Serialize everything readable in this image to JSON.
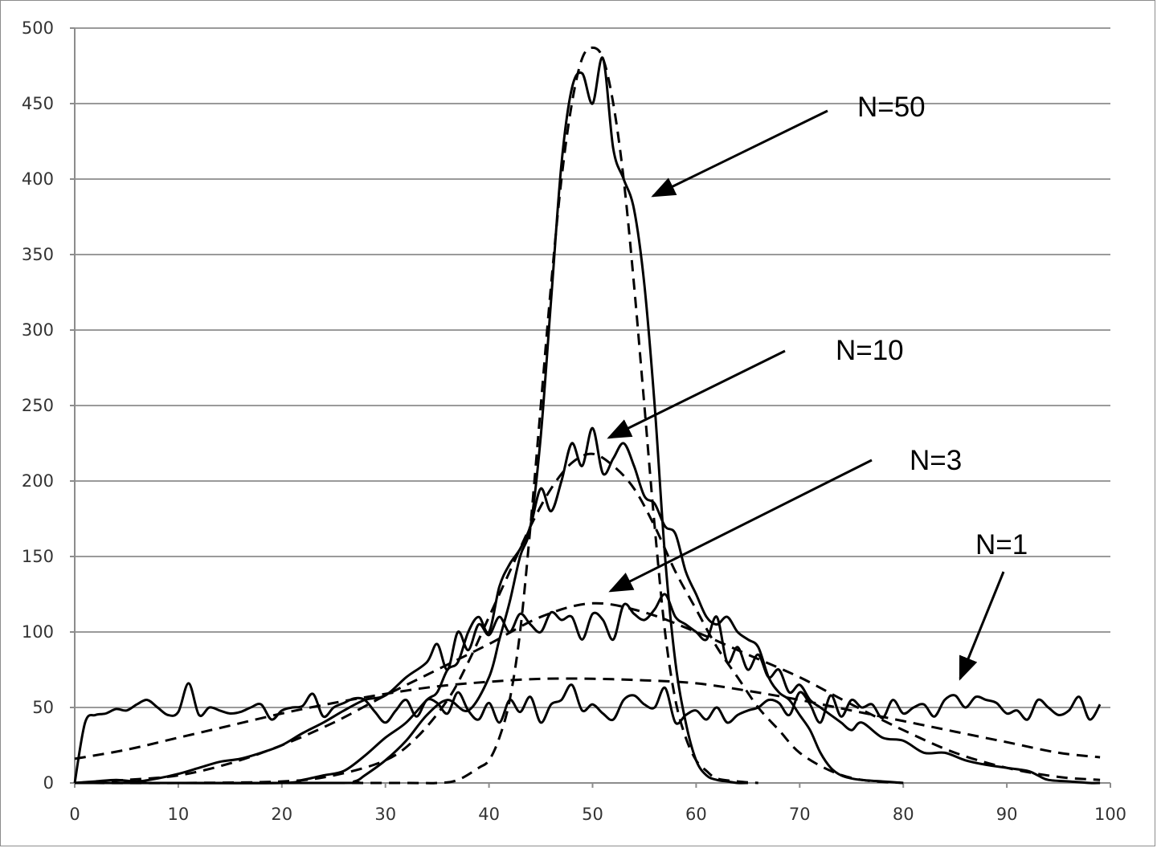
{
  "chart_data": {
    "type": "line",
    "title": "",
    "xlabel": "",
    "ylabel": "",
    "xlim": [
      0,
      100
    ],
    "ylim": [
      0,
      500
    ],
    "x_ticks": [
      0,
      10,
      20,
      30,
      40,
      50,
      60,
      70,
      80,
      90,
      100
    ],
    "y_ticks": [
      0,
      50,
      100,
      150,
      200,
      250,
      300,
      350,
      400,
      450,
      500
    ],
    "grid": "horizontal",
    "legend": "none",
    "line_color": "#000000",
    "grid_color": "#9a9a9a",
    "series": [
      {
        "style": "solid",
        "x": [
          0,
          1,
          2,
          3,
          4,
          5,
          6,
          7,
          8,
          9,
          10,
          11,
          12,
          13,
          14,
          15,
          16,
          17,
          18,
          19,
          20,
          21,
          22,
          23,
          24,
          25,
          26,
          27,
          28,
          29,
          30,
          31,
          32,
          33,
          34,
          35,
          36,
          37,
          38,
          39,
          40,
          41,
          42,
          43,
          44,
          45,
          46,
          47,
          48,
          49,
          50,
          51,
          52,
          53,
          54,
          55,
          56,
          57,
          58,
          59,
          60,
          61,
          62,
          63,
          64,
          65,
          66,
          67,
          68,
          69,
          70,
          71,
          72,
          73,
          74,
          75,
          76,
          77,
          78,
          79,
          80,
          81,
          82,
          83,
          84,
          85,
          86,
          87,
          88,
          89,
          90,
          91,
          92,
          93,
          94,
          95,
          96,
          97,
          98,
          99
        ],
        "y": [
          0,
          40,
          45,
          46,
          49,
          48,
          52,
          55,
          50,
          45,
          47,
          66,
          45,
          50,
          48,
          46,
          47,
          50,
          52,
          42,
          48,
          50,
          51,
          59,
          44,
          50,
          53,
          56,
          55,
          47,
          40,
          48,
          55,
          44,
          55,
          53,
          46,
          60,
          48,
          42,
          53,
          40,
          55,
          47,
          57,
          40,
          52,
          55,
          65,
          48,
          52,
          46,
          42,
          55,
          58,
          52,
          50,
          63,
          40,
          45,
          48,
          42,
          50,
          40,
          45,
          48,
          50,
          55,
          53,
          45,
          60,
          52,
          40,
          58,
          44,
          55,
          50,
          52,
          43,
          55,
          46,
          50,
          52,
          44,
          55,
          58,
          50,
          57,
          55,
          53,
          46,
          48,
          42,
          55,
          50,
          45,
          48,
          57,
          42,
          52
        ]
      },
      {
        "style": "dashed",
        "x": [
          0,
          5,
          10,
          15,
          20,
          25,
          30,
          35,
          40,
          45,
          50,
          55,
          60,
          65,
          70,
          75,
          80,
          85,
          90,
          95,
          99
        ],
        "y": [
          16,
          22,
          30,
          38,
          46,
          53,
          59,
          64,
          67,
          69,
          69,
          68,
          66,
          61,
          55,
          48,
          41,
          34,
          27,
          20,
          17
        ]
      },
      {
        "style": "solid",
        "x": [
          0,
          2,
          4,
          6,
          8,
          10,
          12,
          14,
          16,
          18,
          20,
          22,
          24,
          26,
          28,
          30,
          32,
          34,
          35,
          36,
          37,
          38,
          39,
          40,
          41,
          42,
          43,
          44,
          45,
          46,
          47,
          48,
          49,
          50,
          51,
          52,
          53,
          54,
          55,
          56,
          57,
          58,
          59,
          60,
          61,
          62,
          63,
          64,
          65,
          66,
          67,
          68,
          69,
          70,
          71,
          72,
          73,
          74,
          75,
          76,
          78,
          80,
          82,
          84,
          86,
          88,
          90,
          92,
          93,
          94,
          96,
          98,
          99
        ],
        "y": [
          0,
          1,
          2,
          1,
          3,
          6,
          10,
          14,
          16,
          20,
          25,
          33,
          40,
          48,
          55,
          58,
          70,
          80,
          92,
          75,
          100,
          88,
          105,
          98,
          110,
          100,
          112,
          105,
          100,
          113,
          108,
          110,
          95,
          112,
          108,
          95,
          118,
          112,
          108,
          115,
          125,
          110,
          105,
          100,
          95,
          110,
          80,
          90,
          75,
          85,
          70,
          75,
          60,
          65,
          55,
          50,
          45,
          40,
          35,
          40,
          30,
          28,
          20,
          20,
          15,
          12,
          10,
          8,
          5,
          2,
          1,
          0,
          0
        ]
      },
      {
        "style": "dashed",
        "x": [
          0,
          5,
          10,
          15,
          20,
          25,
          30,
          35,
          40,
          45,
          50,
          55,
          60,
          65,
          70,
          75,
          80,
          85,
          90,
          95,
          99
        ],
        "y": [
          0,
          2,
          5,
          13,
          25,
          40,
          58,
          75,
          92,
          110,
          119,
          113,
          100,
          85,
          70,
          52,
          35,
          20,
          10,
          4,
          2
        ]
      },
      {
        "style": "solid",
        "x": [
          0,
          10,
          20,
          22,
          24,
          26,
          28,
          30,
          32,
          34,
          35,
          36,
          37,
          38,
          39,
          40,
          41,
          42,
          43,
          44,
          45,
          46,
          47,
          48,
          49,
          50,
          51,
          52,
          53,
          54,
          55,
          56,
          57,
          58,
          59,
          60,
          61,
          62,
          63,
          64,
          65,
          66,
          67,
          68,
          69,
          70,
          71,
          72,
          73,
          74,
          75,
          76,
          78,
          80
        ],
        "y": [
          0,
          0,
          0,
          2,
          5,
          8,
          18,
          30,
          40,
          55,
          60,
          75,
          80,
          100,
          110,
          100,
          130,
          145,
          155,
          170,
          195,
          180,
          200,
          225,
          210,
          235,
          205,
          215,
          225,
          210,
          190,
          185,
          170,
          165,
          140,
          125,
          110,
          105,
          110,
          100,
          95,
          90,
          70,
          60,
          55,
          45,
          35,
          20,
          10,
          5,
          3,
          2,
          1,
          0
        ]
      },
      {
        "style": "dashed",
        "x": [
          0,
          10,
          20,
          25,
          30,
          33,
          36,
          38,
          40,
          42,
          44,
          46,
          48,
          50,
          52,
          54,
          56,
          58,
          60,
          62,
          64,
          66,
          68,
          70,
          73,
          76,
          80
        ],
        "y": [
          0,
          0,
          1,
          5,
          15,
          30,
          55,
          80,
          110,
          140,
          170,
          195,
          212,
          218,
          210,
          195,
          170,
          140,
          115,
          90,
          70,
          50,
          35,
          20,
          8,
          2,
          0
        ]
      },
      {
        "style": "solid",
        "x": [
          0,
          25,
          27,
          28,
          30,
          32,
          34,
          36,
          38,
          40,
          41,
          42,
          43,
          44,
          45,
          46,
          47,
          48,
          49,
          50,
          51,
          52,
          53,
          54,
          55,
          56,
          57,
          58,
          59,
          60,
          61,
          62,
          63,
          64,
          65
        ],
        "y": [
          0,
          0,
          1,
          5,
          15,
          28,
          45,
          55,
          48,
          70,
          95,
          120,
          150,
          170,
          230,
          320,
          410,
          460,
          470,
          450,
          480,
          420,
          400,
          380,
          330,
          250,
          150,
          80,
          40,
          15,
          5,
          2,
          1,
          0,
          0
        ]
      },
      {
        "style": "dashed",
        "x": [
          0,
          30,
          35,
          37,
          39,
          40,
          41,
          42,
          43,
          44,
          45,
          46,
          47,
          48,
          49,
          50,
          51,
          52,
          53,
          54,
          55,
          56,
          57,
          58,
          59,
          60,
          61,
          62,
          64,
          66
        ],
        "y": [
          0,
          0,
          0,
          2,
          10,
          15,
          30,
          55,
          100,
          170,
          250,
          330,
          400,
          450,
          480,
          487,
          480,
          450,
          400,
          330,
          250,
          170,
          100,
          55,
          30,
          15,
          8,
          3,
          1,
          0
        ]
      }
    ],
    "annotations": [
      {
        "label": "N=50"
      },
      {
        "label": "N=10"
      },
      {
        "label": "N=3"
      },
      {
        "label": "N=1"
      }
    ]
  }
}
